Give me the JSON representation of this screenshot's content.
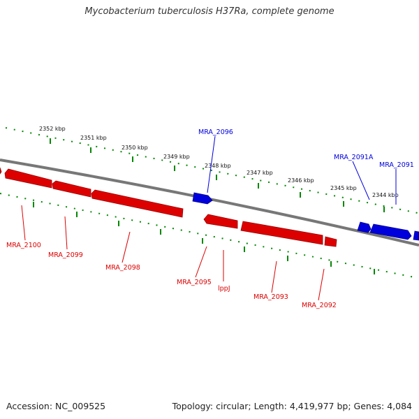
{
  "title": "Mycobacterium tuberculosis H37Ra, complete genome",
  "footer": {
    "accession": "Accession: NC_009525",
    "summary": "Topology: circular; Length: 4,419,977 bp; Genes: 4,084"
  },
  "colors": {
    "forward_strand": "#0000dd",
    "reverse_strand": "#dd0000",
    "tick_marks": "#008800",
    "backbone": "#777777"
  },
  "scale_labels": [
    "2352 kbp",
    "2351 kbp",
    "2350 kbp",
    "2349 kbp",
    "2348 kbp",
    "2347 kbp",
    "2346 kbp",
    "2345 kbp",
    "2344 kbp"
  ],
  "forward_genes": [
    {
      "label": "MRA_2096"
    },
    {
      "label": "MRA_2091A"
    },
    {
      "label": "MRA_2091"
    }
  ],
  "reverse_genes": [
    {
      "label": "MRA_2100"
    },
    {
      "label": "MRA_2099"
    },
    {
      "label": "MRA_2098"
    },
    {
      "label": "MRA_2095"
    },
    {
      "label": "lppJ"
    },
    {
      "label": "MRA_2093"
    },
    {
      "label": "MRA_2092"
    }
  ]
}
